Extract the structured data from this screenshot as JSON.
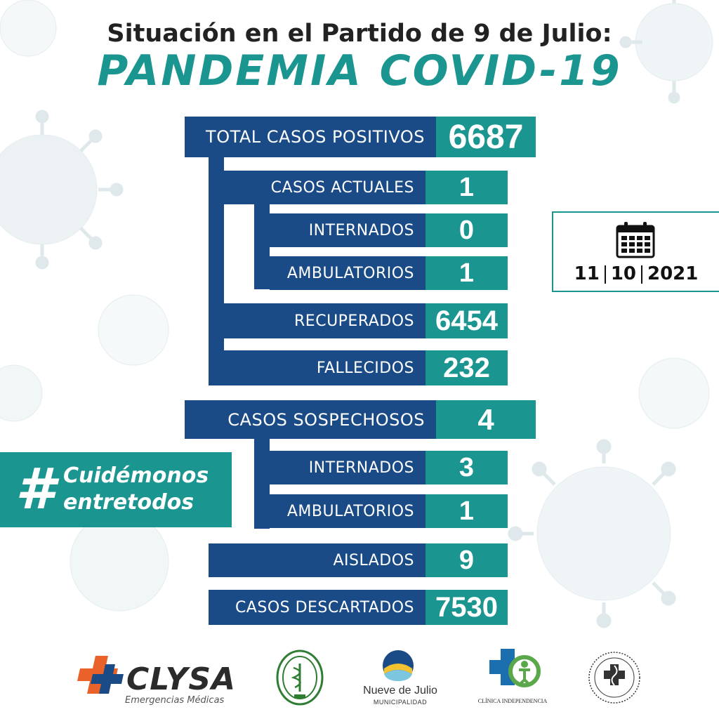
{
  "header": {
    "line1": "Situación en el Partido de 9 de Julio:",
    "line2": "PANDEMIA COVID-19"
  },
  "stats": {
    "total_positivos": {
      "label": "TOTAL CASOS POSITIVOS",
      "value": "6687"
    },
    "casos_actuales": {
      "label": "CASOS ACTUALES",
      "value": "1"
    },
    "internados_actuales": {
      "label": "INTERNADOS",
      "value": "0"
    },
    "ambulatorios_actuales": {
      "label": "AMBULATORIOS",
      "value": "1"
    },
    "recuperados": {
      "label": "RECUPERADOS",
      "value": "6454"
    },
    "fallecidos": {
      "label": "FALLECIDOS",
      "value": "232"
    },
    "sospechosos": {
      "label": "CASOS SOSPECHOSOS",
      "value": "4"
    },
    "internados_sospechosos": {
      "label": "INTERNADOS",
      "value": "3"
    },
    "ambulatorios_sospechosos": {
      "label": "AMBULATORIOS",
      "value": "1"
    },
    "aislados": {
      "label": "AISLADOS",
      "value": "9"
    },
    "descartados": {
      "label": "CASOS DESCARTADOS",
      "value": "7530"
    }
  },
  "date": {
    "day": "11",
    "month": "10",
    "year": "2021",
    "icon": "calendar-icon"
  },
  "hashtag": {
    "symbol": "#",
    "line1": "Cuidémonos",
    "line2": "entretodos"
  },
  "logos": {
    "clysa": {
      "name": "CLYSA",
      "subtitle": "Emergencias Médicas"
    },
    "nueve_de_julio": {
      "name": "Nueve de Julio",
      "subtitle": "MUNICIPALIDAD"
    },
    "clinica": {
      "name": "CLÍNICA INDEPENDENCIA"
    }
  },
  "colors": {
    "navy": "#1b4b86",
    "teal": "#1a9590",
    "title": "#222222",
    "clysa_orange": "#e8622a"
  }
}
